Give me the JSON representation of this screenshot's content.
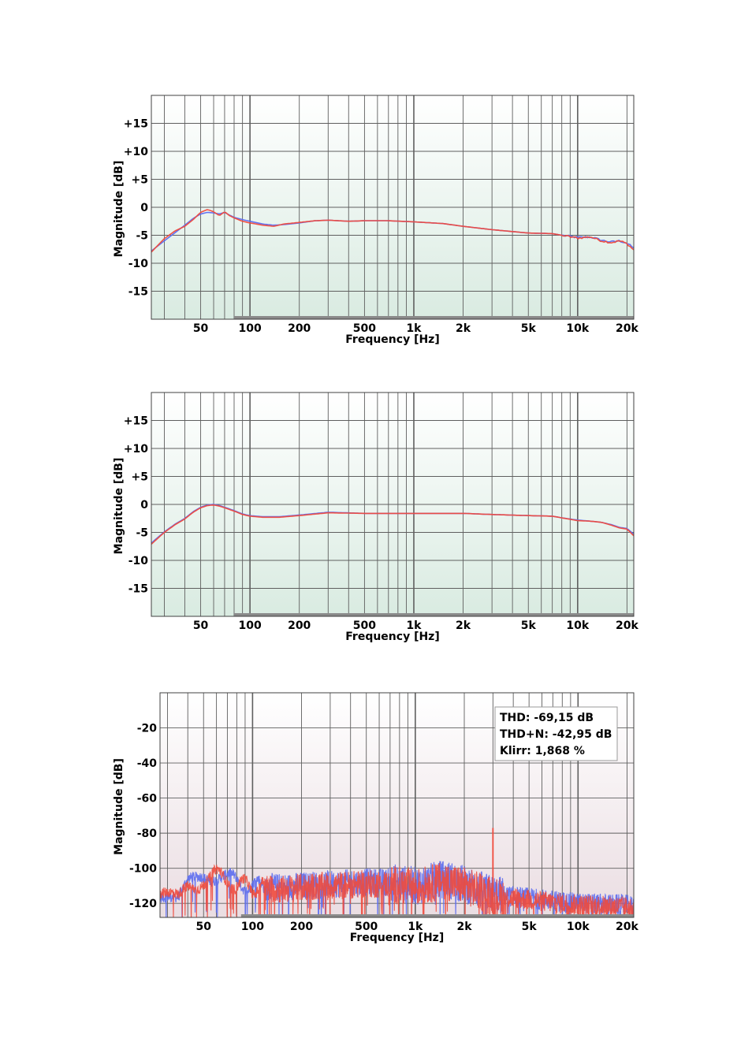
{
  "colors": {
    "left_channel": "#5b6cf0",
    "right_channel": "#f04a3c",
    "plot_border": "#404040",
    "grid": "#5f5f5f"
  },
  "chart_data": [
    {
      "type": "line",
      "title": "",
      "xlabel": "Frequency [Hz]",
      "ylabel": "Magnitude [dB]",
      "xscale": "log",
      "xlim": [
        25,
        22000
      ],
      "ylim": [
        -20,
        20
      ],
      "grid": true,
      "background": "green-gradient",
      "xticks": [
        50,
        100,
        200,
        500,
        1000,
        2000,
        5000,
        10000,
        20000
      ],
      "xtick_labels": [
        "50",
        "100",
        "200",
        "500",
        "1k",
        "2k",
        "5k",
        "10k",
        "20k"
      ],
      "yticks": [
        15,
        10,
        5,
        0,
        -5,
        -10,
        -15
      ],
      "ytick_labels": [
        "+15",
        "+10",
        "+5",
        "0",
        "-5",
        "-10",
        "-15"
      ],
      "series": [
        {
          "color": "#5b6cf0",
          "x": [
            25,
            30,
            35,
            40,
            45,
            50,
            55,
            60,
            65,
            70,
            75,
            80,
            90,
            100,
            120,
            140,
            160,
            200,
            250,
            300,
            400,
            500,
            700,
            1000,
            1500,
            2000,
            3000,
            5000,
            7000,
            8000,
            10000,
            12000,
            14000,
            16000,
            18000,
            20000,
            22000
          ],
          "y": [
            -7.8,
            -6.0,
            -4.5,
            -3.2,
            -2.0,
            -1.2,
            -0.9,
            -1.0,
            -1.2,
            -0.9,
            -1.4,
            -1.8,
            -2.2,
            -2.5,
            -3.0,
            -3.2,
            -3.1,
            -2.8,
            -2.4,
            -2.3,
            -2.5,
            -2.4,
            -2.4,
            -2.6,
            -2.9,
            -3.4,
            -4.0,
            -4.6,
            -4.7,
            -5.0,
            -5.4,
            -5.3,
            -5.9,
            -6.2,
            -6.0,
            -6.4,
            -7.3
          ]
        },
        {
          "color": "#f04a3c",
          "x": [
            25,
            30,
            35,
            40,
            45,
            50,
            55,
            60,
            65,
            70,
            75,
            80,
            90,
            100,
            120,
            140,
            160,
            200,
            250,
            300,
            400,
            500,
            700,
            1000,
            1500,
            2000,
            3000,
            5000,
            7000,
            8000,
            10000,
            12000,
            14000,
            16000,
            18000,
            20000,
            22000
          ],
          "y": [
            -8.0,
            -5.6,
            -4.2,
            -3.4,
            -2.2,
            -0.9,
            -0.4,
            -0.8,
            -1.5,
            -0.8,
            -1.5,
            -1.9,
            -2.5,
            -2.8,
            -3.2,
            -3.4,
            -3.0,
            -2.7,
            -2.4,
            -2.3,
            -2.5,
            -2.4,
            -2.4,
            -2.6,
            -2.9,
            -3.4,
            -4.0,
            -4.6,
            -4.7,
            -5.0,
            -5.5,
            -5.3,
            -6.0,
            -6.3,
            -6.0,
            -6.5,
            -7.6
          ]
        }
      ]
    },
    {
      "type": "line",
      "title": "",
      "xlabel": "Frequency [Hz]",
      "ylabel": "Magnitude [dB]",
      "xscale": "log",
      "xlim": [
        25,
        22000
      ],
      "ylim": [
        -20,
        20
      ],
      "grid": true,
      "background": "green-gradient",
      "xticks": [
        50,
        100,
        200,
        500,
        1000,
        2000,
        5000,
        10000,
        20000
      ],
      "xtick_labels": [
        "50",
        "100",
        "200",
        "500",
        "1k",
        "2k",
        "5k",
        "10k",
        "20k"
      ],
      "yticks": [
        15,
        10,
        5,
        0,
        -5,
        -10,
        -15
      ],
      "ytick_labels": [
        "+15",
        "+10",
        "+5",
        "0",
        "-5",
        "-10",
        "-15"
      ],
      "series": [
        {
          "color": "#5b6cf0",
          "x": [
            25,
            30,
            35,
            40,
            45,
            50,
            55,
            60,
            65,
            70,
            80,
            90,
            100,
            120,
            150,
            200,
            300,
            500,
            1000,
            2000,
            3000,
            5000,
            7000,
            8000,
            10000,
            12000,
            14000,
            16000,
            18000,
            20000,
            22000
          ],
          "y": [
            -6.9,
            -4.9,
            -3.5,
            -2.5,
            -1.3,
            -0.5,
            -0.1,
            0.0,
            -0.2,
            -0.5,
            -1.1,
            -1.7,
            -2.0,
            -2.2,
            -2.2,
            -1.9,
            -1.4,
            -1.6,
            -1.6,
            -1.6,
            -1.8,
            -2.0,
            -2.1,
            -2.4,
            -2.8,
            -3.0,
            -3.2,
            -3.6,
            -4.1,
            -4.3,
            -5.3
          ]
        },
        {
          "color": "#f04a3c",
          "x": [
            25,
            30,
            35,
            40,
            45,
            50,
            55,
            60,
            65,
            70,
            80,
            90,
            100,
            120,
            150,
            200,
            300,
            500,
            1000,
            2000,
            3000,
            5000,
            7000,
            8000,
            10000,
            12000,
            14000,
            16000,
            18000,
            20000,
            22000
          ],
          "y": [
            -7.1,
            -5.0,
            -3.6,
            -2.6,
            -1.4,
            -0.6,
            -0.2,
            -0.1,
            -0.3,
            -0.6,
            -1.2,
            -1.8,
            -2.1,
            -2.3,
            -2.3,
            -2.0,
            -1.5,
            -1.6,
            -1.6,
            -1.6,
            -1.8,
            -2.0,
            -2.1,
            -2.4,
            -2.9,
            -3.0,
            -3.2,
            -3.7,
            -4.2,
            -4.4,
            -5.6
          ]
        }
      ]
    },
    {
      "type": "line",
      "title": "",
      "xlabel": "Frequency [Hz]",
      "ylabel": "Magnitude [dB]",
      "xscale": "log",
      "xlim": [
        27,
        22000
      ],
      "ylim": [
        -128,
        0
      ],
      "grid": true,
      "background": "pink-gradient",
      "xticks": [
        50,
        100,
        200,
        500,
        1000,
        2000,
        5000,
        10000,
        20000
      ],
      "xtick_labels": [
        "50",
        "100",
        "200",
        "500",
        "1k",
        "2k",
        "5k",
        "10k",
        "20k"
      ],
      "yticks": [
        -20,
        -40,
        -60,
        -80,
        -100,
        -120
      ],
      "ytick_labels": [
        "-20",
        "-40",
        "-60",
        "-80",
        "-100",
        "-120"
      ],
      "annotation": [
        "THD: -69,15 dB",
        "THD+N: -42,95 dB",
        "Klirr: 1,868 %"
      ],
      "peak": {
        "x": 3000,
        "y": -77
      },
      "series": [
        {
          "color": "#5b6cf0",
          "x": [
            27,
            30,
            35,
            40,
            45,
            50,
            55,
            60,
            65,
            70,
            80,
            90,
            100,
            150,
            200,
            300,
            500,
            700,
            1000,
            1500,
            2000,
            3000,
            5000,
            10000,
            20000,
            22000
          ],
          "y": [
            -113,
            -114,
            -118,
            -110,
            -108,
            -105,
            -104,
            -103,
            -104,
            -106,
            -108,
            -109,
            -110,
            -111,
            -110,
            -109,
            -108,
            -108,
            -110,
            -106,
            -109,
            -115,
            -117,
            -120,
            -121,
            -122
          ]
        },
        {
          "color": "#f04a3c",
          "x": [
            27,
            30,
            35,
            40,
            45,
            50,
            55,
            60,
            65,
            70,
            80,
            90,
            100,
            150,
            200,
            300,
            500,
            700,
            1000,
            1500,
            2000,
            3000,
            5000,
            10000,
            20000,
            22000
          ],
          "y": [
            -114,
            -116,
            -119,
            -111,
            -109,
            -106,
            -105,
            -104,
            -106,
            -107,
            -109,
            -110,
            -111,
            -112,
            -111,
            -110,
            -109,
            -109,
            -111,
            -107,
            -110,
            -116,
            -118,
            -121,
            -122,
            -123
          ]
        }
      ]
    }
  ]
}
